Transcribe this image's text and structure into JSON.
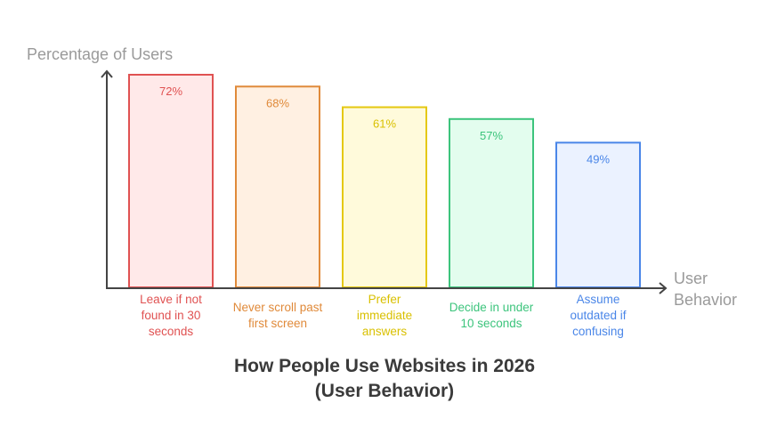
{
  "chart_data": {
    "type": "bar",
    "title": "How People Use Websites in 2026",
    "subtitle": "(User Behavior)",
    "ylabel": "Percentage of Users",
    "xlabel": "User Behavior",
    "categories": [
      [
        "Leave if not",
        "found in 30",
        "seconds"
      ],
      [
        "Never scroll past",
        "first screen"
      ],
      [
        "Prefer",
        "immediate",
        "answers"
      ],
      [
        "Decide in under",
        "10 seconds"
      ],
      [
        "Assume",
        "outdated if",
        "confusing"
      ]
    ],
    "values": [
      72,
      68,
      61,
      57,
      49
    ],
    "value_labels": [
      "72%",
      "68%",
      "61%",
      "57%",
      "49%"
    ],
    "colors": [
      {
        "stroke": "#e05252",
        "fill": "#ffe9e9",
        "text": "#e05252"
      },
      {
        "stroke": "#e08a3a",
        "fill": "#fff0e2",
        "text": "#e08a3a"
      },
      {
        "stroke": "#e5c810",
        "fill": "#fffadb",
        "text": "#d9c000"
      },
      {
        "stroke": "#3cc47c",
        "fill": "#e3fdee",
        "text": "#3cc47c"
      },
      {
        "stroke": "#4a86e8",
        "fill": "#ebf2ff",
        "text": "#4a86e8"
      }
    ],
    "ylim": [
      0,
      72
    ],
    "grid": false,
    "legend": "none"
  }
}
